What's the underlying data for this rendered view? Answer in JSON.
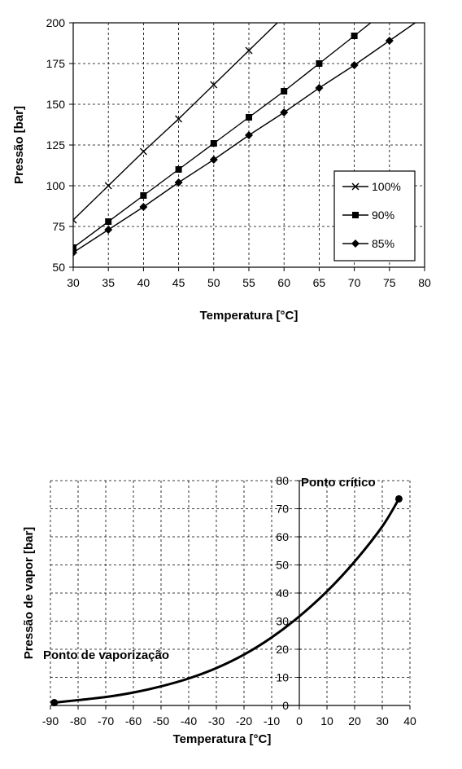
{
  "chart_data": [
    {
      "type": "line",
      "xlabel": "Temperatura [°C]",
      "ylabel": "Pressão [bar]",
      "xlim": [
        30,
        80
      ],
      "ylim": [
        50,
        200
      ],
      "xticks": [
        30,
        35,
        40,
        45,
        50,
        55,
        60,
        65,
        70,
        75,
        80
      ],
      "yticks": [
        50,
        75,
        100,
        125,
        150,
        175,
        200
      ],
      "grid": true,
      "legend": "right",
      "series": [
        {
          "name": "100%",
          "marker": "x",
          "x": [
            30,
            35,
            40,
            45,
            50,
            55
          ],
          "y": [
            79,
            100,
            121,
            141,
            162,
            183
          ],
          "line_end": [
            60,
            204
          ]
        },
        {
          "name": "90%",
          "marker": "square",
          "x": [
            30,
            35,
            40,
            45,
            50,
            55,
            60,
            65,
            70
          ],
          "y": [
            62,
            78,
            94,
            110,
            126,
            142,
            158,
            175,
            192
          ],
          "line_end": [
            73.5,
            204
          ]
        },
        {
          "name": "85%",
          "marker": "diamond",
          "x": [
            30,
            35,
            40,
            45,
            50,
            55,
            60,
            65,
            70,
            75
          ],
          "y": [
            59,
            73,
            87,
            102,
            116,
            131,
            145,
            160,
            174,
            189
          ],
          "line_end": [
            80,
            204
          ]
        }
      ]
    },
    {
      "type": "line",
      "xlabel": "Temperatura [°C]",
      "ylabel": "Pressão de vapor [bar]",
      "xlim": [
        -90,
        40
      ],
      "ylim": [
        0,
        80
      ],
      "xticks": [
        -90,
        -80,
        -70,
        -60,
        -50,
        -40,
        -30,
        -20,
        -10,
        0,
        10,
        20,
        30,
        40
      ],
      "yticks": [
        0,
        10,
        20,
        30,
        40,
        50,
        60,
        70,
        80
      ],
      "grid": true,
      "series": [
        {
          "x": [
            -88.6,
            -80,
            -70,
            -60,
            -50,
            -40,
            -30,
            -20,
            -10,
            0,
            10,
            20,
            30,
            36
          ],
          "y": [
            1,
            1.9,
            3,
            4.6,
            6.8,
            9.6,
            13.3,
            18.1,
            24.2,
            31.7,
            40.6,
            51.2,
            63.7,
            73.5
          ]
        }
      ],
      "annotations": [
        {
          "text": "Ponto de vaporização",
          "x": -88.6,
          "y": 1
        },
        {
          "text": "Ponto crítico",
          "x": 36,
          "y": 73.5
        }
      ]
    }
  ]
}
